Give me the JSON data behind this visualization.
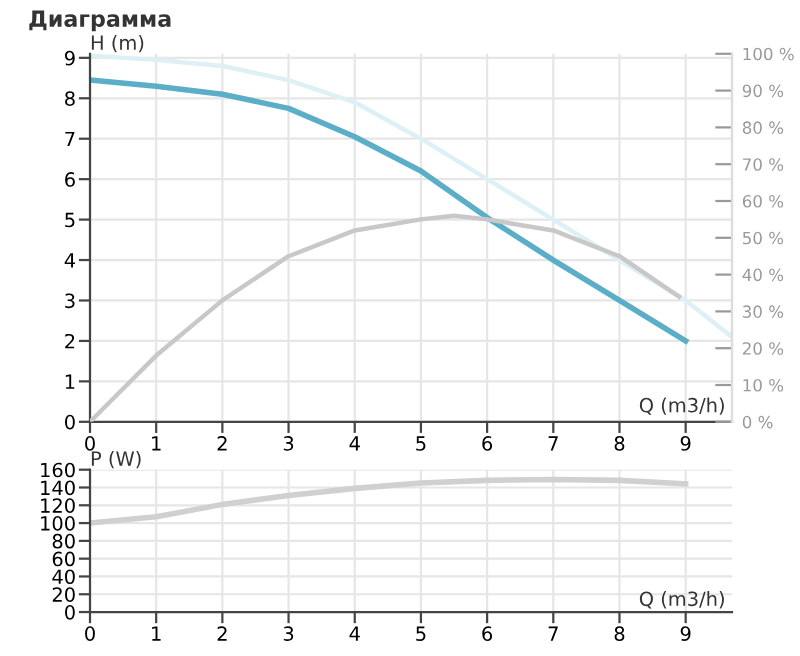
{
  "chart_data": [
    {
      "type": "line",
      "title": "Диаграмма",
      "ylabel": "H (m)",
      "xlabel": "Q (m3/h)",
      "xlim": [
        0,
        9.7
      ],
      "xticks": [
        0,
        1,
        2,
        3,
        4,
        5,
        6,
        7,
        8,
        9
      ],
      "ylim": [
        0,
        9.1
      ],
      "yticks": [
        0,
        1,
        2,
        3,
        4,
        5,
        6,
        7,
        8,
        9
      ],
      "y2lim": [
        0,
        100
      ],
      "y2ticks": [
        {
          "value": 0,
          "label": "0 %"
        },
        {
          "value": 10,
          "label": "10 %"
        },
        {
          "value": 20,
          "label": "20 %"
        },
        {
          "value": 30,
          "label": "30 %"
        },
        {
          "value": 40,
          "label": "40 %"
        },
        {
          "value": 50,
          "label": "50 %"
        },
        {
          "value": 60,
          "label": "60 %"
        },
        {
          "value": 70,
          "label": "70 %"
        },
        {
          "value": 80,
          "label": "80 %"
        },
        {
          "value": 90,
          "label": "90 %"
        },
        {
          "value": 100,
          "label": "100 %"
        }
      ],
      "grid": true,
      "marker": "none",
      "line_style": "solid",
      "series": [
        {
          "color": "#dcf0f6",
          "x": [
            0,
            1,
            2,
            3,
            4,
            5,
            6,
            7,
            8,
            9,
            9.7
          ],
          "values": [
            9.05,
            8.95,
            8.8,
            8.45,
            7.9,
            7.0,
            6.0,
            5.0,
            4.0,
            3.0,
            2.1
          ]
        },
        {
          "color": "#c8c8c8",
          "axis": "y2",
          "x": [
            0,
            1,
            2,
            3,
            4,
            5,
            5.5,
            6,
            7,
            8,
            8.9
          ],
          "values": [
            0,
            18,
            33,
            45,
            52,
            55,
            56,
            55,
            52,
            45,
            34
          ]
        },
        {
          "color": "#5aaec8",
          "x": [
            0,
            1,
            2,
            3,
            4,
            5,
            6,
            7,
            8,
            9
          ],
          "values": [
            8.45,
            8.3,
            8.1,
            7.75,
            7.05,
            6.2,
            5.05,
            4.0,
            3.0,
            2.0
          ]
        }
      ]
    },
    {
      "type": "line",
      "ylabel": "P (W)",
      "xlabel": "Q (m3/h)",
      "xlim": [
        0,
        9.7
      ],
      "xticks": [
        0,
        1,
        2,
        3,
        4,
        5,
        6,
        7,
        8,
        9
      ],
      "ylim": [
        0,
        160
      ],
      "yticks": [
        0,
        20,
        40,
        60,
        80,
        100,
        120,
        140,
        160
      ],
      "grid": true,
      "marker": "none",
      "line_style": "solid",
      "series": [
        {
          "color": "#d0d0d0",
          "x": [
            0,
            1,
            2,
            3,
            4,
            5,
            6,
            7,
            8,
            9
          ],
          "values": [
            100,
            107,
            121,
            131,
            139,
            145,
            148,
            149,
            148,
            144
          ]
        }
      ]
    }
  ]
}
